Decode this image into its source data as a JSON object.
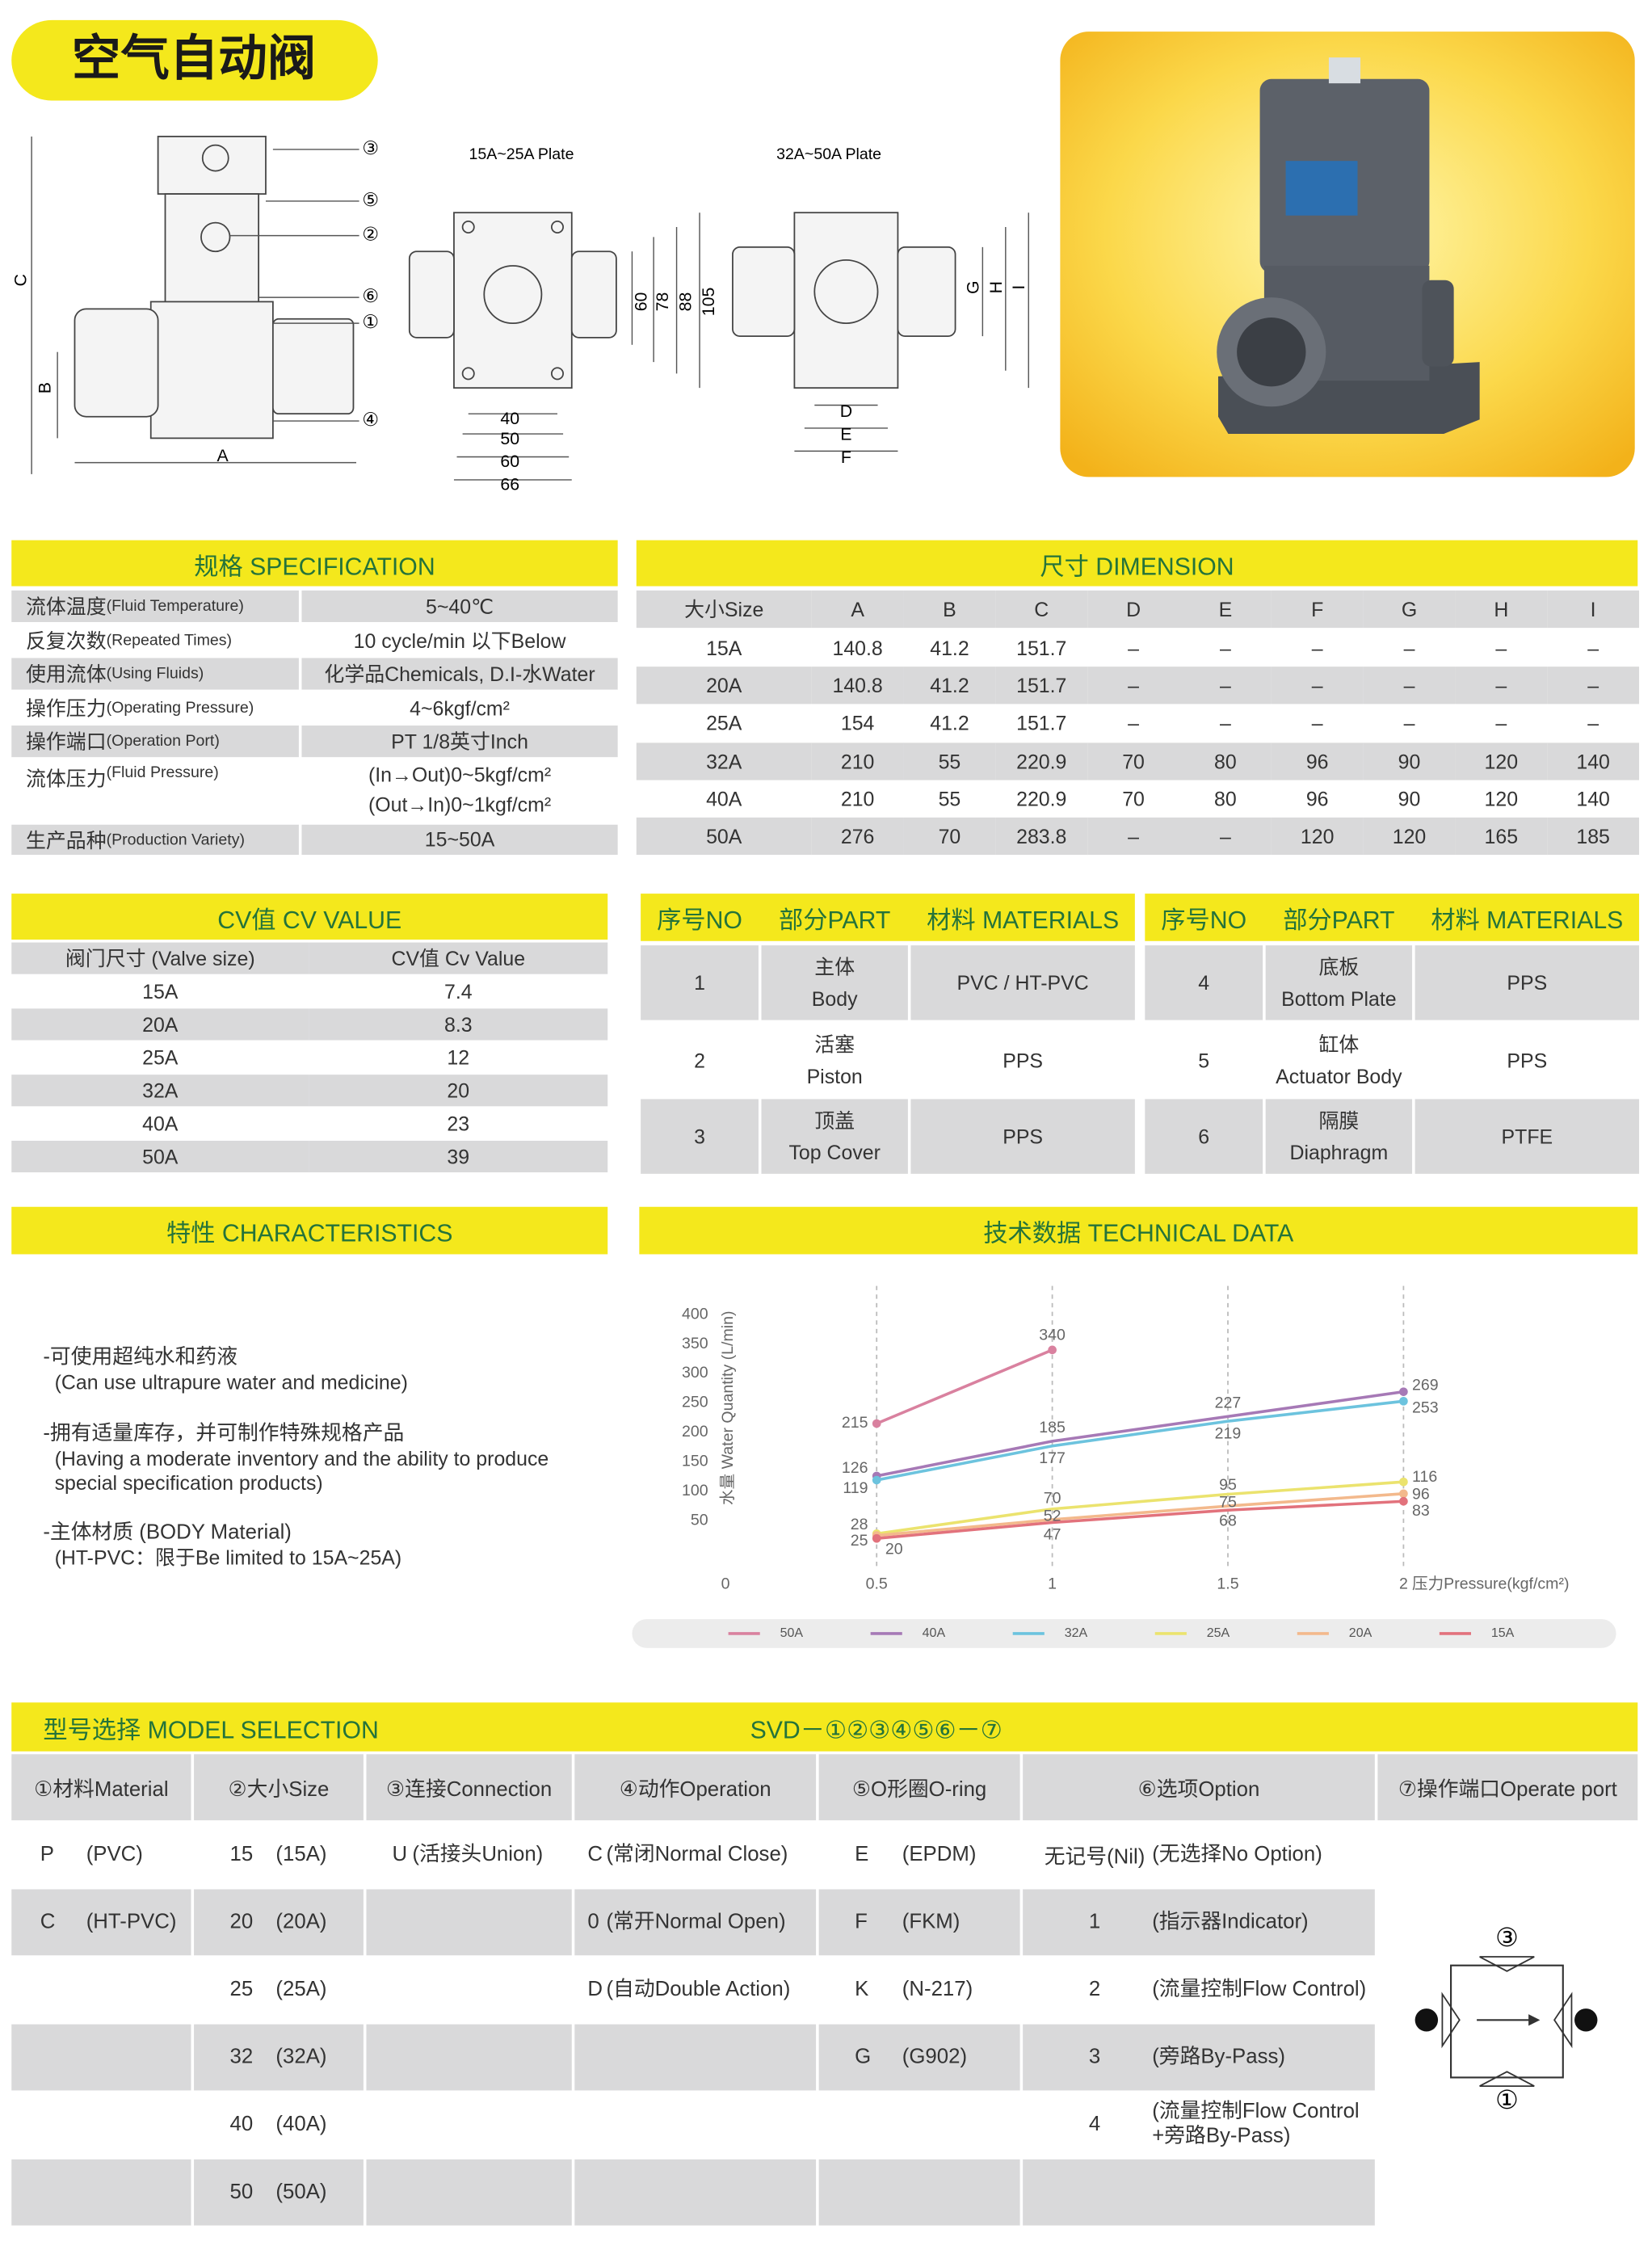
{
  "header": {
    "title": "空气自动阀"
  },
  "drawing": {
    "plate_small": "15A~25A Plate",
    "plate_large": "32A~50A Plate",
    "side_labels": [
      "A",
      "B",
      "C"
    ],
    "callouts": [
      "③",
      "⑤",
      "②",
      "⑥",
      "①",
      "④"
    ],
    "small_widths": [
      "40",
      "50",
      "60",
      "66"
    ],
    "small_heights": [
      "60",
      "78",
      "88",
      "105"
    ],
    "large_widths": [
      "D",
      "E",
      "F"
    ],
    "large_heights": [
      "G",
      "H",
      "I"
    ]
  },
  "specification": {
    "title": "规格  SPECIFICATION",
    "rows": [
      {
        "cn": "流体温度",
        "en": "(Fluid Temperature)",
        "value": [
          "5~40℃"
        ]
      },
      {
        "cn": "反复次数",
        "en": "(Repeated Times)",
        "value": [
          "10 cycle/min 以下Below"
        ]
      },
      {
        "cn": "使用流体",
        "en": "(Using Fluids)",
        "value": [
          "化学品Chemicals, D.I-水Water"
        ]
      },
      {
        "cn": "操作压力",
        "en": "(Operating Pressure)",
        "value": [
          "4~6kgf/cm²"
        ]
      },
      {
        "cn": "操作端口",
        "en": "(Operation Port)",
        "value": [
          "PT 1/8英寸Inch"
        ]
      },
      {
        "cn": "流体压力",
        "en": "(Fluid Pressure)",
        "value": [
          "(In→Out)0~5kgf/cm²",
          "(Out→In)0~1kgf/cm²"
        ]
      },
      {
        "cn": "生产品种",
        "en": "(Production Variety)",
        "value": [
          "15~50A"
        ]
      }
    ]
  },
  "dimension": {
    "title": "尺寸  DIMENSION",
    "header": [
      "大小Size",
      "A",
      "B",
      "C",
      "D",
      "E",
      "F",
      "G",
      "H",
      "I"
    ],
    "rows": [
      [
        "15A",
        "140.8",
        "41.2",
        "151.7",
        "–",
        "–",
        "–",
        "–",
        "–",
        "–"
      ],
      [
        "20A",
        "140.8",
        "41.2",
        "151.7",
        "–",
        "–",
        "–",
        "–",
        "–",
        "–"
      ],
      [
        "25A",
        "154",
        "41.2",
        "151.7",
        "–",
        "–",
        "–",
        "–",
        "–",
        "–"
      ],
      [
        "32A",
        "210",
        "55",
        "220.9",
        "70",
        "80",
        "96",
        "90",
        "120",
        "140"
      ],
      [
        "40A",
        "210",
        "55",
        "220.9",
        "70",
        "80",
        "96",
        "90",
        "120",
        "140"
      ],
      [
        "50A",
        "276",
        "70",
        "283.8",
        "–",
        "–",
        "120",
        "120",
        "165",
        "185"
      ]
    ]
  },
  "cv_value": {
    "title": "CV值  CV VALUE",
    "header": [
      "阀门尺寸 (Valve size)",
      "CV值 Cv Value"
    ],
    "rows": [
      [
        "15A",
        "7.4"
      ],
      [
        "20A",
        "8.3"
      ],
      [
        "25A",
        "12"
      ],
      [
        "32A",
        "20"
      ],
      [
        "40A",
        "23"
      ],
      [
        "50A",
        "39"
      ]
    ]
  },
  "parts": {
    "header": [
      "序号NO",
      "部分PART",
      "材料 MATERIALS"
    ],
    "rows": [
      {
        "no": "1",
        "cn": "主体",
        "en": "Body",
        "material": "PVC / HT-PVC"
      },
      {
        "no": "2",
        "cn": "活塞",
        "en": "Piston",
        "material": "PPS"
      },
      {
        "no": "3",
        "cn": "顶盖",
        "en": "Top Cover",
        "material": "PPS"
      },
      {
        "no": "4",
        "cn": "底板",
        "en": "Bottom Plate",
        "material": "PPS"
      },
      {
        "no": "5",
        "cn": "缸体",
        "en": "Actuator Body",
        "material": "PPS"
      },
      {
        "no": "6",
        "cn": "隔膜",
        "en": "Diaphragm",
        "material": "PTFE"
      }
    ]
  },
  "characteristics": {
    "title": "特性  CHARACTERISTICS",
    "items": [
      {
        "cn": "-可使用超纯水和药液",
        "en": "(Can use ultrapure water and medicine)"
      },
      {
        "cn": "-拥有适量库存，并可制作特殊规格产品",
        "en": "(Having a moderate inventory and the ability to produce special specification products)"
      },
      {
        "cn": "-主体材质 (BODY Material)",
        "en": "(HT-PVC：限于Be limited to 15A~25A)"
      }
    ]
  },
  "technical_data": {
    "title": "技术数据  TECHNICAL DATA"
  },
  "chart_data": {
    "type": "line",
    "x_label": "压力Pressure(kgf/cm²)",
    "y_label": "水量 Water Quantity (L/min)",
    "x": [
      0.5,
      1,
      1.5,
      2
    ],
    "xlim": [
      0,
      2
    ],
    "ylim": [
      0,
      400
    ],
    "xticks": [
      0,
      0.5,
      1,
      1.5,
      2
    ],
    "yticks": [
      50,
      100,
      150,
      200,
      250,
      300,
      350,
      400
    ],
    "grid": true,
    "legend": "bottom",
    "series": [
      {
        "name": "50A",
        "color": "#d9819f",
        "values": [
          215,
          340,
          null,
          null
        ]
      },
      {
        "name": "40A",
        "color": "#a679b6",
        "values": [
          126,
          185,
          227,
          269
        ]
      },
      {
        "name": "32A",
        "color": "#6cc3de",
        "values": [
          119,
          177,
          219,
          253
        ]
      },
      {
        "name": "25A",
        "color": "#ebe36e",
        "values": [
          28,
          70,
          95,
          116
        ]
      },
      {
        "name": "20A",
        "color": "#f3b98c",
        "values": [
          25,
          52,
          75,
          96
        ]
      },
      {
        "name": "15A",
        "color": "#e2727c",
        "values": [
          20,
          47,
          68,
          83
        ]
      }
    ]
  },
  "model_selection": {
    "title": "型号选择  MODEL SELECTION",
    "code": "SVD－①②③④⑤⑥－⑦",
    "columns": [
      {
        "header": "①材料Material",
        "items": [
          {
            "code": "P",
            "desc": "(PVC)"
          },
          {
            "code": "C",
            "desc": "(HT-PVC)"
          }
        ]
      },
      {
        "header": "②大小Size",
        "items": [
          {
            "code": "15",
            "desc": "(15A)"
          },
          {
            "code": "20",
            "desc": "(20A)"
          },
          {
            "code": "25",
            "desc": "(25A)"
          },
          {
            "code": "32",
            "desc": "(32A)"
          },
          {
            "code": "40",
            "desc": "(40A)"
          },
          {
            "code": "50",
            "desc": "(50A)"
          }
        ]
      },
      {
        "header": "③连接Connection",
        "items": [
          {
            "code": "U",
            "desc": "(活接头Union)"
          }
        ]
      },
      {
        "header": "④动作Operation",
        "items": [
          {
            "code": "C",
            "desc": "(常闭Normal Close)"
          },
          {
            "code": "0",
            "desc": "(常开Normal Open)"
          },
          {
            "code": "D",
            "desc": "(自动Double Action)"
          }
        ]
      },
      {
        "header": "⑤O形圈O-ring",
        "items": [
          {
            "code": "E",
            "desc": "(EPDM)"
          },
          {
            "code": "F",
            "desc": "(FKM)"
          },
          {
            "code": "K",
            "desc": "(N-217)"
          },
          {
            "code": "G",
            "desc": "(G902)"
          }
        ]
      },
      {
        "header": "⑥选项Option",
        "items": [
          {
            "code": "无记号(Nil)",
            "desc": "(无选择No Option)"
          },
          {
            "code": "1",
            "desc": "(指示器Indicator)"
          },
          {
            "code": "2",
            "desc": "(流量控制Flow Control)"
          },
          {
            "code": "3",
            "desc": "(旁路By-Pass)"
          },
          {
            "code": "4",
            "desc": "(流量控制Flow Control +旁路By-Pass)"
          }
        ]
      },
      {
        "header": "⑦操作端口Operate port"
      }
    ],
    "port_labels": [
      "③",
      "①"
    ]
  }
}
